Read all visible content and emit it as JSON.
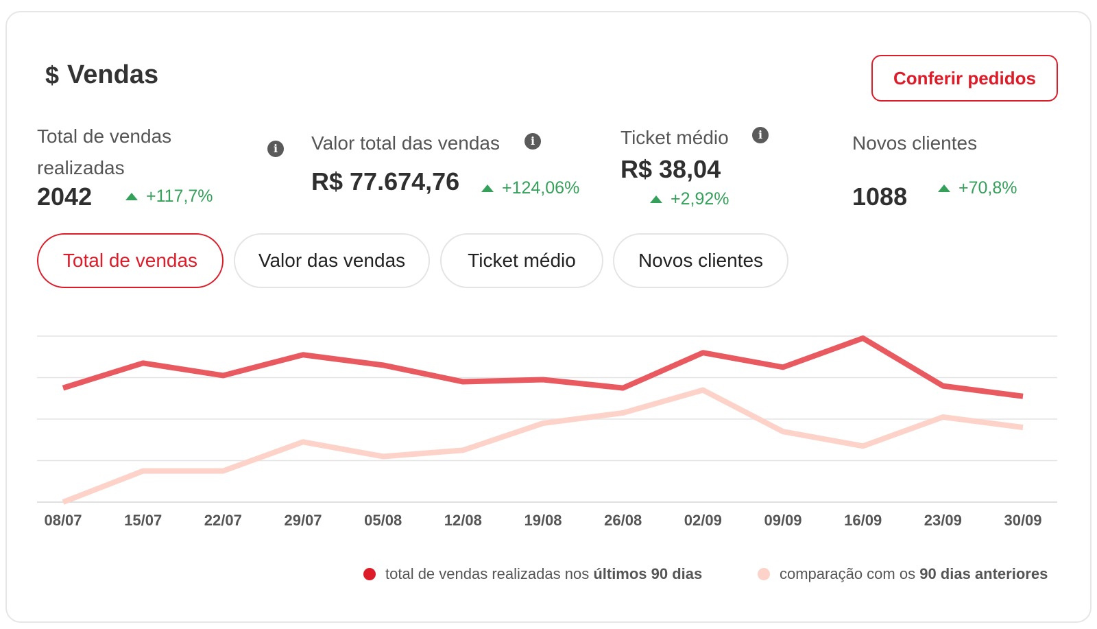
{
  "header": {
    "title": "Vendas",
    "title_icon": "$",
    "action_button": "Conferir pedidos"
  },
  "metrics": [
    {
      "label": "Total de vendas realizadas",
      "value": "2042",
      "delta": "+117,7%",
      "info": true
    },
    {
      "label": "Valor total das vendas",
      "value": "R$ 77.674,76",
      "delta": "+124,06%",
      "info": true
    },
    {
      "label": "Ticket médio",
      "value": "R$ 38,04",
      "delta": "+2,92%",
      "info": true
    },
    {
      "label": "Novos clientes",
      "value": "1088",
      "delta": "+70,8%",
      "info": false
    }
  ],
  "tabs": [
    {
      "label": "Total de vendas",
      "active": true
    },
    {
      "label": "Valor das vendas",
      "active": false
    },
    {
      "label": "Ticket médio",
      "active": false
    },
    {
      "label": "Novos clientes",
      "active": false
    }
  ],
  "colors": {
    "accent": "#dd1c2a",
    "series_current": "#e85a5f",
    "series_previous": "#fdd3c9",
    "positive": "#35a05a"
  },
  "chart_data": {
    "type": "line",
    "x": [
      "08/07",
      "15/07",
      "22/07",
      "29/07",
      "05/08",
      "12/08",
      "19/08",
      "26/08",
      "02/09",
      "09/09",
      "16/09",
      "23/09",
      "30/09"
    ],
    "ylim": [
      0,
      4
    ],
    "grid": true,
    "series": [
      {
        "name": "total de vendas realizadas nos últimos 90 dias",
        "color": "#e85a5f",
        "values": [
          2.75,
          3.35,
          3.05,
          3.55,
          3.3,
          2.9,
          2.95,
          2.75,
          3.6,
          3.25,
          3.95,
          2.8,
          2.55
        ]
      },
      {
        "name": "comparação com os 90 dias anteriores",
        "color": "#fdd3c9",
        "values": [
          0.0,
          0.75,
          0.75,
          1.45,
          1.1,
          1.25,
          1.9,
          2.15,
          2.7,
          1.7,
          1.35,
          2.05,
          1.8
        ]
      }
    ],
    "legend": {
      "position": "bottom-right",
      "items": [
        {
          "prefix": "total de vendas realizadas nos ",
          "bold": "últimos 90 dias"
        },
        {
          "prefix": "comparação com os ",
          "bold": "90 dias anteriores"
        }
      ]
    }
  }
}
